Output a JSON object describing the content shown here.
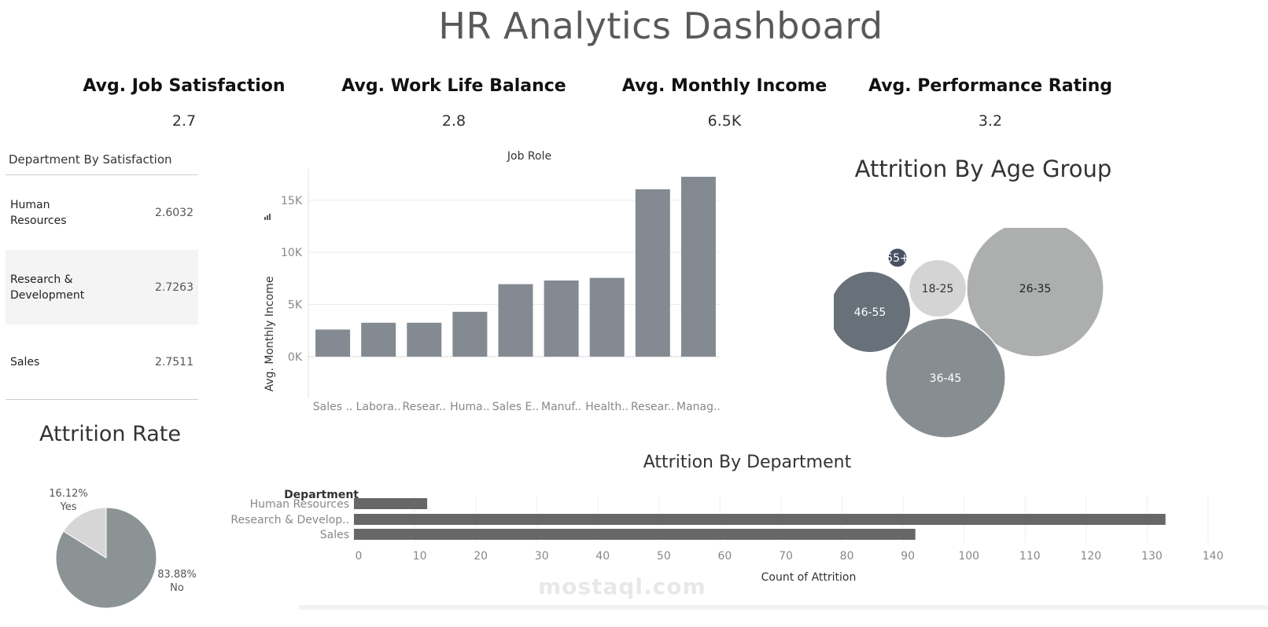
{
  "header": {
    "title": "HR Analytics Dashboard"
  },
  "kpis": [
    {
      "label": "Avg. Job Satisfaction",
      "value": "2.7"
    },
    {
      "label": "Avg. Work Life Balance",
      "value": "2.8"
    },
    {
      "label": "Avg. Monthly Income",
      "value": "6.5K"
    },
    {
      "label": "Avg. Performance Rating",
      "value": "3.2"
    }
  ],
  "department_satisfaction": {
    "title": "Department By Satisfaction",
    "rows": [
      {
        "name": "Human Resources",
        "value": "2.6032"
      },
      {
        "name": "Research & Development",
        "value": "2.7263"
      },
      {
        "name": "Sales",
        "value": "2.7511"
      }
    ]
  },
  "income_chart": {
    "column_header": "Job Role",
    "ylabel": "Avg. Monthly Income",
    "sort_icon": "sort-icon"
  },
  "age_chart": {
    "title": "Attrition By Age Group"
  },
  "rate_chart": {
    "title": "Attrition Rate"
  },
  "dept_chart": {
    "title": "Attrition By Department",
    "ylabel": "Department",
    "xlabel": "Count of Attrition"
  },
  "watermark": {
    "text": "mostaql.com"
  },
  "colors": {
    "bar": "#838a91",
    "grid": "#ececec",
    "dept_bar": "#676767",
    "pie_no": "#8c9395",
    "pie_yes": "#d6d6d6"
  },
  "chart_data": [
    {
      "type": "bar",
      "title": "Job Role",
      "xlabel": "",
      "ylabel": "Avg. Monthly Income",
      "categories": [
        "Sales ..",
        "Labora..",
        "Resear..",
        "Huma..",
        "Sales E..",
        "Manuf..",
        "Health..",
        "Resear..",
        "Manag.."
      ],
      "values": [
        2600,
        3250,
        3250,
        4300,
        6950,
        7300,
        7550,
        16050,
        17250
      ],
      "yticks": [
        "0K",
        "5K",
        "10K",
        "15K"
      ],
      "ylim": [
        -4000,
        18000
      ],
      "grid": true
    },
    {
      "type": "scatter",
      "title": "Attrition By Age Group",
      "categories": [
        "55+",
        "46-55",
        "18-25",
        "26-35",
        "36-45"
      ],
      "values": [
        1,
        18,
        9,
        51,
        39
      ],
      "colors": [
        "#485263",
        "#687079",
        "#d4d4d4",
        "#adafaf",
        "#878e92"
      ],
      "label_colors": [
        "#ffffff",
        "#ffffff",
        "#333333",
        "#222222",
        "#ffffff"
      ]
    },
    {
      "type": "pie",
      "title": "Attrition Rate",
      "categories": [
        "No",
        "Yes"
      ],
      "values": [
        83.88,
        16.12
      ],
      "labels": [
        "83.88%",
        "16.12%"
      ]
    },
    {
      "type": "bar",
      "orientation": "horizontal",
      "title": "Attrition By Department",
      "xlabel": "Count of Attrition",
      "ylabel": "Department",
      "categories": [
        "Human Resources",
        "Research & Develop..",
        "Sales"
      ],
      "values": [
        12,
        133,
        92
      ],
      "xticks": [
        0,
        10,
        20,
        30,
        40,
        50,
        60,
        70,
        80,
        90,
        100,
        110,
        120,
        130,
        140
      ],
      "xlim": [
        0,
        140
      ],
      "grid": true
    }
  ]
}
